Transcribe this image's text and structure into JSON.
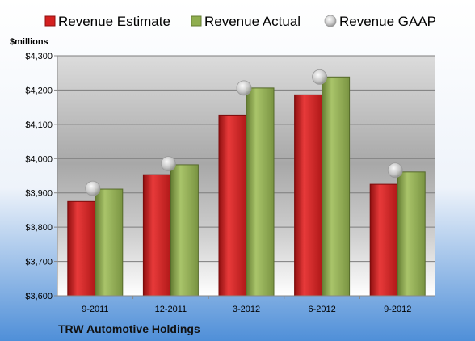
{
  "chart_data": {
    "type": "bar",
    "title": "TRW Automotive Holdings",
    "ylabel": "$millions",
    "categories": [
      "9-2011",
      "12-2011",
      "3-2012",
      "6-2012",
      "9-2012"
    ],
    "series": [
      {
        "name": "Revenue Estimate",
        "kind": "bar",
        "color": "#d42020",
        "values": [
          3875,
          3953,
          4127,
          4186,
          3925
        ]
      },
      {
        "name": "Revenue Actual",
        "kind": "bar",
        "color": "#8fae4f",
        "values": [
          3911,
          3982,
          4206,
          4238,
          3961
        ]
      },
      {
        "name": "Revenue GAAP",
        "kind": "marker",
        "color": "#c0c0c0",
        "values": [
          3913,
          3985,
          4206,
          4238,
          3966
        ]
      }
    ],
    "ylim": [
      3600,
      4300
    ],
    "yticks": [
      3600,
      3700,
      3800,
      3900,
      4000,
      4100,
      4200,
      4300
    ],
    "ytick_labels": [
      "$3,600",
      "$3,700",
      "$3,800",
      "$3,900",
      "$4,000",
      "$4,100",
      "$4,200",
      "$4,300"
    ],
    "grid": true,
    "legend_position": "top"
  }
}
